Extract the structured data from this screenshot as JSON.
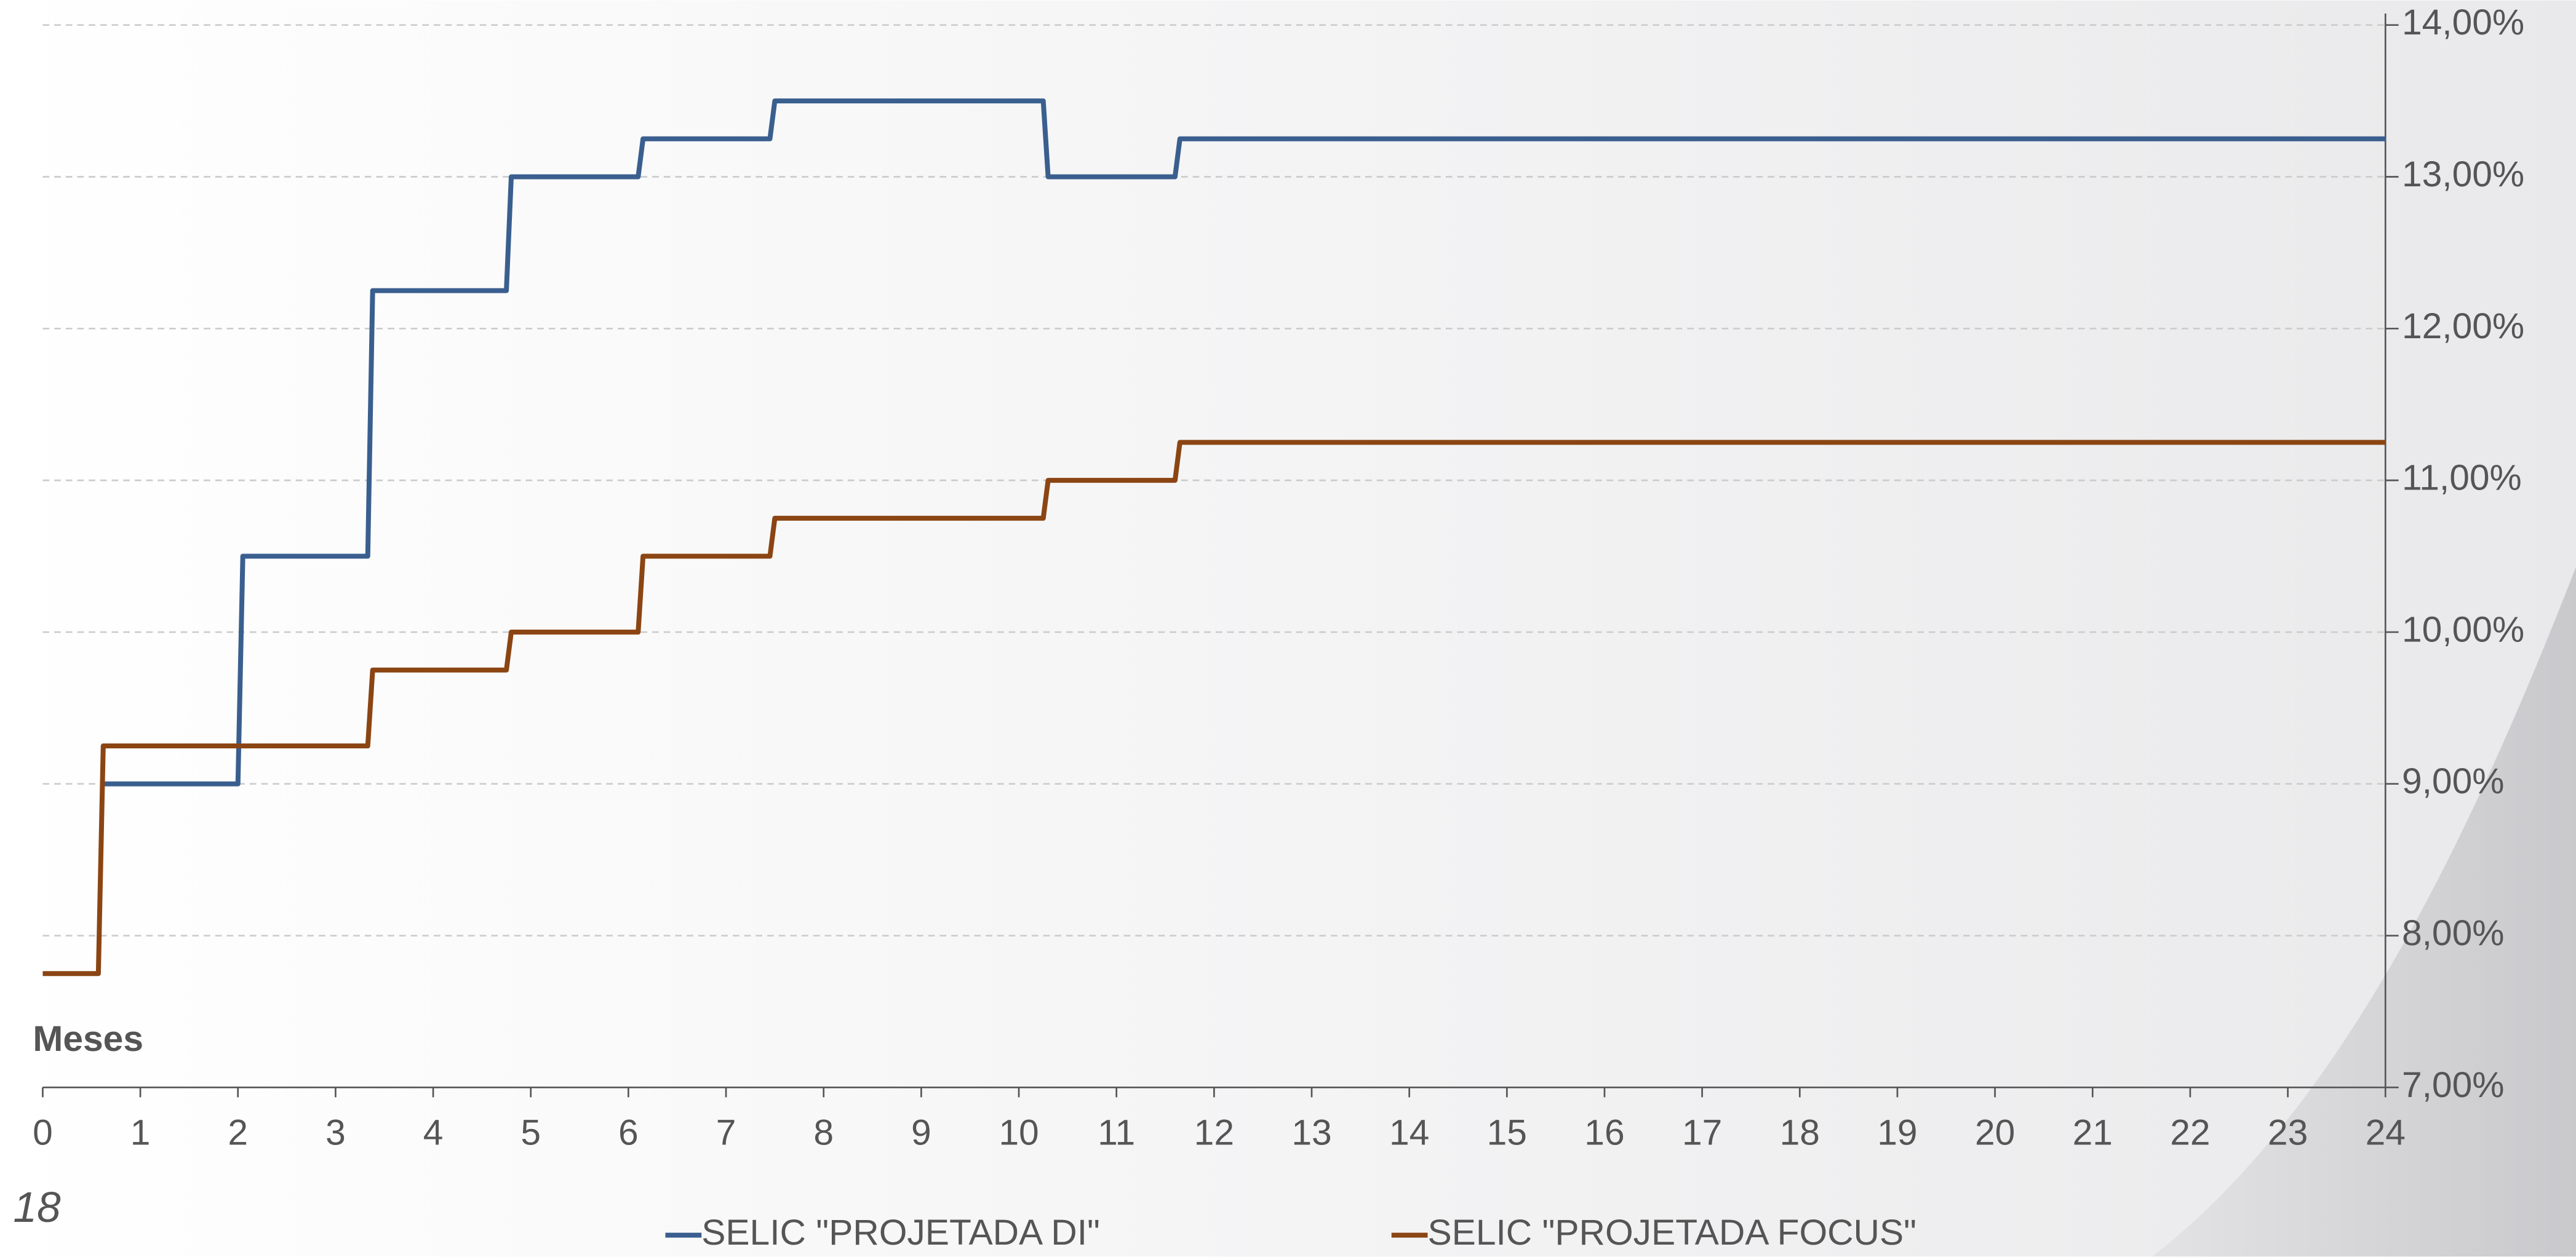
{
  "page_number": "18",
  "chart_data": {
    "type": "line",
    "step": true,
    "x_label": "Meses",
    "xlim": [
      0,
      24
    ],
    "xticks": [
      0,
      1,
      2,
      3,
      4,
      5,
      6,
      7,
      8,
      9,
      10,
      11,
      12,
      13,
      14,
      15,
      16,
      17,
      18,
      19,
      20,
      21,
      22,
      23,
      24
    ],
    "ylim": [
      7,
      14
    ],
    "yticks": [
      {
        "value": 7,
        "label": "7,00%"
      },
      {
        "value": 8,
        "label": "8,00%"
      },
      {
        "value": 9,
        "label": "9,00%"
      },
      {
        "value": 10,
        "label": "10,00%"
      },
      {
        "value": 11,
        "label": "11,00%"
      },
      {
        "value": 12,
        "label": "12,00%"
      },
      {
        "value": 13,
        "label": "13,00%"
      },
      {
        "value": 14,
        "label": "14,00%"
      }
    ],
    "grid": true,
    "y_axis_side": "right",
    "legend": "bottom",
    "series": [
      {
        "name": "SELIC \"PROJETADA DI\"",
        "color": "#3a5f8f",
        "x": [
          0.62,
          2.0,
          2.05,
          3.33,
          3.38,
          4.75,
          4.8,
          6.1,
          6.15,
          7.45,
          7.5,
          10.25,
          10.3,
          11.6,
          11.65,
          24
        ],
        "values": [
          9.0,
          9.0,
          10.5,
          10.5,
          12.25,
          12.25,
          13.0,
          13.0,
          13.25,
          13.25,
          13.5,
          13.5,
          13.0,
          13.0,
          13.25,
          13.25
        ]
      },
      {
        "name": "SELIC \"PROJETADA FOCUS\"",
        "color": "#8b4513",
        "x": [
          0,
          0.57,
          0.62,
          3.33,
          3.38,
          4.75,
          4.8,
          6.1,
          6.15,
          7.45,
          7.5,
          10.25,
          10.3,
          11.6,
          11.65,
          24
        ],
        "values": [
          7.75,
          7.75,
          9.25,
          9.25,
          9.75,
          9.75,
          10.0,
          10.0,
          10.5,
          10.5,
          10.75,
          10.75,
          11.0,
          11.0,
          11.25,
          11.25
        ]
      }
    ]
  }
}
